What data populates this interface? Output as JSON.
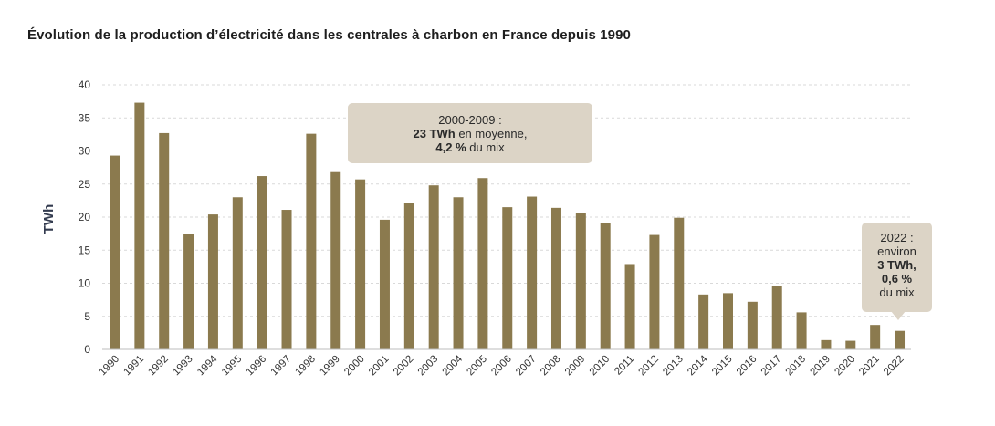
{
  "chart_data": {
    "type": "bar",
    "title": "Évolution de la production d’électricité dans les centrales à charbon en France depuis 1990",
    "ylabel": "TWh",
    "xlabel": "",
    "ylim": [
      0,
      40
    ],
    "yticks": [
      0,
      5,
      10,
      15,
      20,
      25,
      30,
      35,
      40
    ],
    "grid": "horizontal dashed",
    "bar_color": "#8b7a4e",
    "categories": [
      "1990",
      "1991",
      "1992",
      "1993",
      "1994",
      "1995",
      "1996",
      "1997",
      "1998",
      "1999",
      "2000",
      "2001",
      "2002",
      "2003",
      "2004",
      "2005",
      "2006",
      "2007",
      "2008",
      "2009",
      "2010",
      "2011",
      "2012",
      "2013",
      "2014",
      "2015",
      "2016",
      "2017",
      "2018",
      "2019",
      "2020",
      "2021",
      "2022"
    ],
    "values": [
      29.3,
      37.3,
      32.7,
      17.4,
      20.4,
      23.0,
      26.2,
      21.1,
      32.6,
      26.8,
      25.7,
      19.6,
      22.2,
      24.8,
      23.0,
      25.9,
      21.5,
      23.1,
      21.4,
      20.6,
      19.1,
      12.9,
      17.3,
      19.9,
      8.3,
      8.5,
      7.2,
      9.6,
      5.6,
      1.4,
      1.3,
      3.7,
      2.8
    ],
    "annotations": {
      "period_2000_2009": {
        "line1": "2000-2009 :",
        "line2_bold": "23 TWh",
        "line2_rest": " en moyenne,",
        "line3_bold": "4,2 %",
        "line3_rest": " du mix"
      },
      "year_2022": {
        "line1": "2022 :",
        "line2": "environ",
        "line3_bold": "3 TWh,",
        "line4_bold": "0,6 %",
        "line5": "du mix"
      }
    }
  }
}
